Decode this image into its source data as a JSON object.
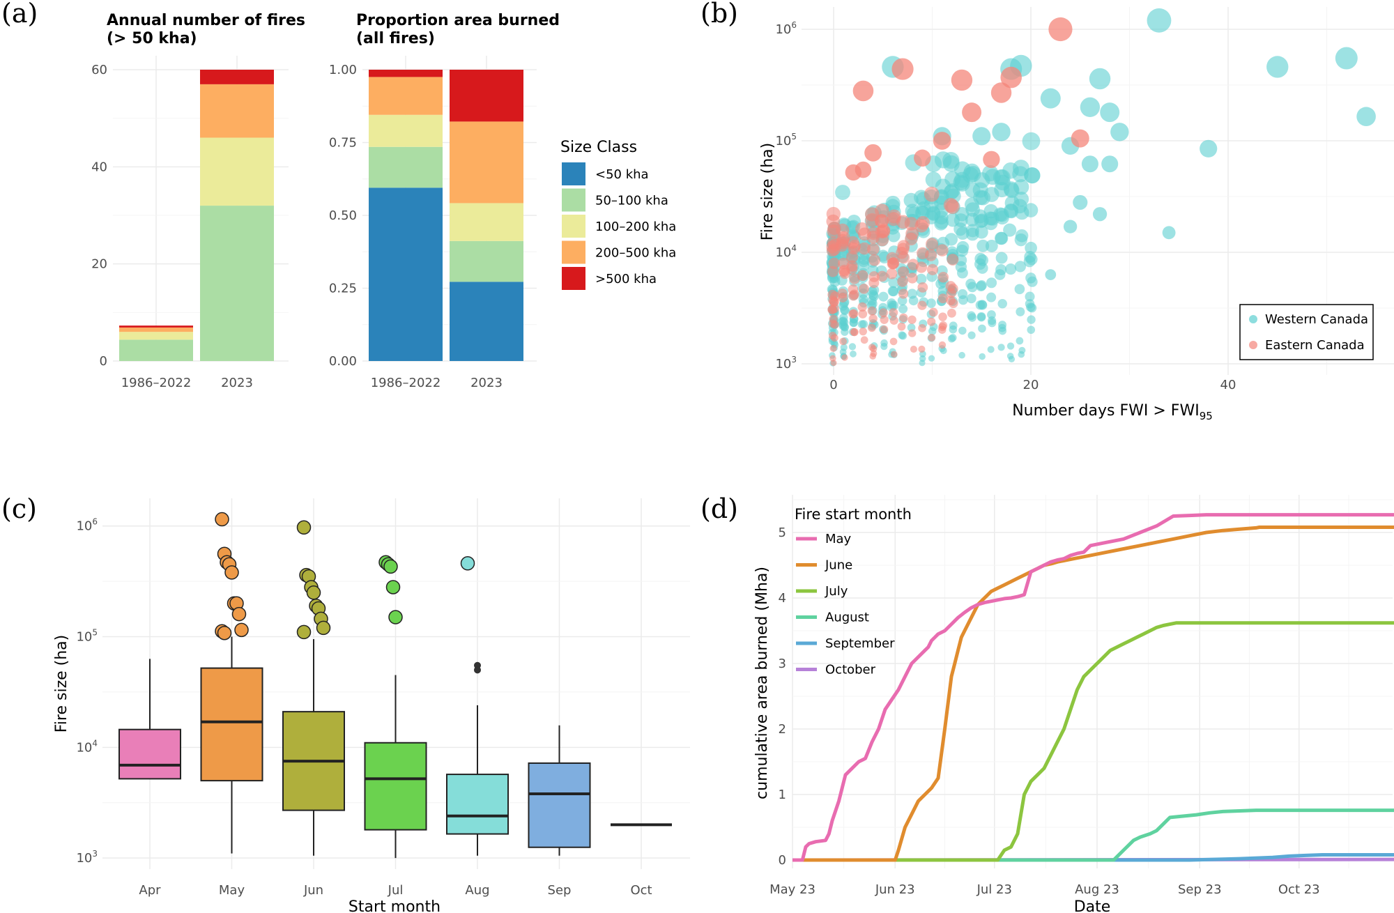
{
  "colors": {
    "lt50": "#2b83ba",
    "s50_100": "#abdda4",
    "s100_200": "#ebeb9a",
    "s200_500": "#fdae61",
    "gt500": "#d7191c",
    "western": "#5ccfd0",
    "eastern": "#f4857a",
    "may": "#e86cb0",
    "june": "#e08c2e",
    "july": "#8cc53f",
    "august": "#5fd29f",
    "september": "#5aa9d6",
    "october": "#b681d8",
    "apr_box": "#e97fb8",
    "may_box": "#ee9a48",
    "jun_box": "#afaf3c",
    "jul_box": "#6bd24f",
    "aug_box": "#85ddd9",
    "sep_box": "#7faedf"
  },
  "panel_labels": {
    "a": "(a)",
    "b": "(b)",
    "c": "(c)",
    "d": "(d)"
  },
  "chart_data": [
    {
      "id": "a1",
      "type": "bar",
      "stacked": true,
      "title": "Annual number of fires",
      "subtitle": "(> 50 kha)",
      "categories": [
        "1986–2022",
        "2023"
      ],
      "series": [
        {
          "name": "50–100 kha",
          "values": [
            4.4,
            32
          ]
        },
        {
          "name": "100–200 kha",
          "values": [
            1.6,
            14
          ]
        },
        {
          "name": "200–500 kha",
          "values": [
            0.9,
            11
          ]
        },
        {
          "name": ">500 kha",
          "values": [
            0.4,
            3
          ]
        }
      ],
      "ylim": [
        0,
        60
      ],
      "yticks": [
        0,
        20,
        40,
        60
      ],
      "ytick_labels": [
        "0",
        "20",
        "40",
        "60"
      ]
    },
    {
      "id": "a2",
      "type": "bar",
      "stacked": true,
      "title": "Proportion area burned",
      "subtitle": "(all fires)",
      "categories": [
        "1986–2022",
        "2023"
      ],
      "series": [
        {
          "name": "<50 kha",
          "values": [
            0.595,
            0.272
          ]
        },
        {
          "name": "50–100 kha",
          "values": [
            0.14,
            0.14
          ]
        },
        {
          "name": "100–200 kha",
          "values": [
            0.11,
            0.13
          ]
        },
        {
          "name": "200–500 kha",
          "values": [
            0.13,
            0.28
          ]
        },
        {
          "name": ">500 kha",
          "values": [
            0.025,
            0.178
          ]
        }
      ],
      "ylim": [
        0,
        1
      ],
      "yticks": [
        0,
        0.25,
        0.5,
        0.75,
        1
      ],
      "ytick_labels": [
        "0.00",
        "0.25",
        "0.50",
        "0.75",
        "1.00"
      ],
      "legend": {
        "title": "Size Class",
        "entries": [
          "<50 kha",
          "50–100 kha",
          "100–200 kha",
          "200–500 kha",
          ">500 kha"
        ],
        "placement": "right"
      }
    },
    {
      "id": "b",
      "type": "scatter",
      "xlabel": "Number days FWI > FWI",
      "xlabel_sub": "95",
      "ylabel": "Fire size (ha)",
      "xlim": [
        -2,
        55
      ],
      "xticks": [
        0,
        20,
        40
      ],
      "ylim_log10": [
        2.9,
        6.2
      ],
      "ytick_base": "10",
      "ytick_exponents": [
        "3",
        "4",
        "5",
        "6"
      ],
      "legend": {
        "entries": [
          "Western Canada",
          "Eastern Canada"
        ],
        "placement": "bottom-right"
      },
      "highlight_points": {
        "Western Canada": [
          [
            33,
            1200000
          ],
          [
            45,
            460000
          ],
          [
            52,
            550000
          ],
          [
            54,
            165000
          ],
          [
            27,
            360000
          ],
          [
            28,
            180000
          ],
          [
            26,
            200000
          ],
          [
            29,
            120000
          ],
          [
            22,
            240000
          ],
          [
            38,
            85000
          ],
          [
            24,
            90000
          ],
          [
            26,
            62000
          ],
          [
            28,
            62000
          ],
          [
            25,
            28000
          ],
          [
            27,
            22000
          ],
          [
            24,
            17000
          ],
          [
            34,
            15000
          ],
          [
            22,
            6300
          ],
          [
            19,
            470000
          ],
          [
            18,
            440000
          ],
          [
            17,
            120000
          ],
          [
            15,
            110000
          ],
          [
            11,
            110000
          ],
          [
            6,
            460000
          ]
        ],
        "Eastern Canada": [
          [
            23,
            1000000
          ],
          [
            3,
            280000
          ],
          [
            7,
            440000
          ],
          [
            13,
            350000
          ],
          [
            17,
            270000
          ],
          [
            18,
            370000
          ],
          [
            14,
            180000
          ],
          [
            25,
            105000
          ],
          [
            4,
            78000
          ],
          [
            2,
            52000
          ],
          [
            9,
            70000
          ],
          [
            11,
            100000
          ],
          [
            16,
            68000
          ],
          [
            3,
            55000
          ]
        ]
      },
      "series": [
        {
          "name": "Western Canada",
          "n_points_approx": 450,
          "note": "dense cloud, x 0-20, size 1e3-1e5 ha"
        },
        {
          "name": "Eastern Canada",
          "n_points_approx": 150,
          "note": "dense cloud, x 0-12, size 1e3-1e5 ha"
        }
      ]
    },
    {
      "id": "c",
      "type": "box",
      "xlabel": "Start month",
      "ylabel": "Fire size (ha)",
      "categories": [
        "Apr",
        "May",
        "Jun",
        "Jul",
        "Aug",
        "Sep",
        "Oct"
      ],
      "ylim_log10": [
        2.9,
        6.25
      ],
      "ytick_base": "10",
      "ytick_exponents": [
        "3",
        "4",
        "5",
        "6"
      ],
      "boxes": [
        {
          "month": "Apr",
          "whisker_low": 5200,
          "q1": 5200,
          "median": 6900,
          "q3": 14500,
          "whisker_high": 63000,
          "outliers": []
        },
        {
          "month": "May",
          "whisker_low": 1100,
          "q1": 5000,
          "median": 17000,
          "q3": 52000,
          "whisker_high": 100000,
          "outliers": [
            1150000,
            560000,
            470000,
            450000,
            380000,
            200000,
            200000,
            160000,
            115000,
            112000,
            108000
          ]
        },
        {
          "month": "Jun",
          "whisker_low": 1050,
          "q1": 2700,
          "median": 7500,
          "q3": 21000,
          "whisker_high": 95000,
          "outliers": [
            970000,
            360000,
            350000,
            280000,
            250000,
            190000,
            180000,
            145000,
            120000,
            110000
          ]
        },
        {
          "month": "Jul",
          "whisker_low": 1000,
          "q1": 1800,
          "median": 5200,
          "q3": 11000,
          "whisker_high": 45000,
          "outliers": [
            470000,
            450000,
            430000,
            280000,
            150000
          ]
        },
        {
          "month": "Aug",
          "whisker_low": 1050,
          "q1": 1650,
          "median": 2400,
          "q3": 5700,
          "whisker_high": 24000,
          "outliers": [
            460000,
            55000,
            50000
          ]
        },
        {
          "month": "Sep",
          "whisker_low": 1050,
          "q1": 1250,
          "median": 3800,
          "q3": 7200,
          "whisker_high": 15800,
          "outliers": []
        },
        {
          "month": "Oct",
          "whisker_low": 2000,
          "q1": 2000,
          "median": 2000,
          "q3": 2000,
          "whisker_high": 2000,
          "outliers": []
        }
      ]
    },
    {
      "id": "d",
      "type": "line",
      "xlabel": "Date",
      "ylabel": "cumulative area burned (Mha)",
      "x_unit": "days since May 1 2023",
      "xticks": [
        0,
        31,
        61,
        92,
        123,
        153
      ],
      "xtick_labels": [
        "May 23",
        "Jun 23",
        "Jul 23",
        "Aug 23",
        "Sep 23",
        "Oct 23"
      ],
      "xlim": [
        0,
        185
      ],
      "ylim": [
        0,
        5.35
      ],
      "yticks": [
        0,
        1,
        2,
        3,
        4,
        5
      ],
      "legend": {
        "title": "Fire start month",
        "entries": [
          "May",
          "June",
          "July",
          "August",
          "September",
          "October"
        ],
        "placement": "top-left"
      },
      "series": [
        {
          "name": "May",
          "x": [
            0,
            3,
            4,
            5,
            7,
            10,
            11,
            12,
            14,
            16,
            18,
            20,
            22,
            24,
            26,
            28,
            30,
            32,
            34,
            36,
            38,
            40,
            41,
            42,
            43,
            44,
            46,
            48,
            50,
            52,
            54,
            56,
            58,
            60,
            62,
            64,
            66,
            68,
            70,
            72,
            74,
            76,
            78,
            80,
            82,
            84,
            86,
            88,
            90,
            95,
            100,
            105,
            110,
            115,
            120,
            125,
            130,
            132,
            134,
            136,
            138,
            140,
            142,
            144,
            146,
            148,
            149,
            150,
            185
          ],
          "y": [
            0,
            0,
            0.2,
            0.25,
            0.28,
            0.3,
            0.4,
            0.6,
            0.9,
            1.3,
            1.4,
            1.5,
            1.55,
            1.8,
            2.0,
            2.3,
            2.45,
            2.6,
            2.8,
            3.0,
            3.1,
            3.2,
            3.25,
            3.35,
            3.4,
            3.45,
            3.5,
            3.6,
            3.7,
            3.78,
            3.85,
            3.9,
            3.93,
            3.95,
            3.97,
            3.99,
            4.0,
            4.02,
            4.05,
            4.4,
            4.45,
            4.5,
            4.55,
            4.58,
            4.6,
            4.65,
            4.68,
            4.7,
            4.8,
            4.85,
            4.9,
            5.0,
            5.1,
            5.25,
            5.26,
            5.27,
            5.27,
            5.27,
            5.27,
            5.27,
            5.27,
            5.27,
            5.27,
            5.27,
            5.27,
            5.27,
            5.27,
            5.27,
            5.27
          ]
        },
        {
          "name": "June",
          "x": [
            0,
            31,
            32,
            34,
            36,
            38,
            40,
            42,
            44,
            46,
            48,
            49,
            50,
            51,
            52,
            54,
            56,
            58,
            60,
            62,
            64,
            66,
            68,
            70,
            72,
            74,
            76,
            78,
            80,
            85,
            90,
            95,
            100,
            105,
            110,
            115,
            120,
            125,
            130,
            135,
            140,
            141,
            142,
            143,
            185
          ],
          "y": [
            0,
            0,
            0.15,
            0.5,
            0.7,
            0.9,
            1.0,
            1.1,
            1.25,
            2.0,
            2.8,
            3.0,
            3.2,
            3.4,
            3.5,
            3.7,
            3.9,
            4.0,
            4.1,
            4.15,
            4.2,
            4.25,
            4.3,
            4.35,
            4.4,
            4.45,
            4.5,
            4.52,
            4.55,
            4.6,
            4.65,
            4.7,
            4.75,
            4.8,
            4.85,
            4.9,
            4.95,
            5.0,
            5.03,
            5.05,
            5.07,
            5.08,
            5.08,
            5.08,
            5.08
          ]
        },
        {
          "name": "July",
          "x": [
            0,
            62,
            64,
            66,
            68,
            70,
            72,
            74,
            76,
            78,
            80,
            82,
            84,
            86,
            88,
            90,
            92,
            94,
            96,
            98,
            100,
            102,
            104,
            106,
            108,
            110,
            112,
            114,
            116,
            118,
            120,
            125,
            130,
            135,
            140,
            145,
            150,
            155,
            160,
            185
          ],
          "y": [
            0,
            0,
            0.15,
            0.2,
            0.4,
            1.0,
            1.2,
            1.3,
            1.4,
            1.6,
            1.8,
            2.0,
            2.3,
            2.6,
            2.8,
            2.9,
            3.0,
            3.1,
            3.2,
            3.25,
            3.3,
            3.35,
            3.4,
            3.45,
            3.5,
            3.55,
            3.58,
            3.6,
            3.62,
            3.62,
            3.62,
            3.62,
            3.62,
            3.62,
            3.62,
            3.62,
            3.62,
            3.62,
            3.62,
            3.62
          ]
        },
        {
          "name": "August",
          "x": [
            0,
            97,
            98,
            100,
            103,
            105,
            108,
            110,
            112,
            114,
            118,
            122,
            126,
            130,
            135,
            140,
            145,
            150,
            155,
            185
          ],
          "y": [
            0,
            0,
            0.05,
            0.15,
            0.3,
            0.35,
            0.4,
            0.45,
            0.55,
            0.65,
            0.67,
            0.69,
            0.72,
            0.74,
            0.75,
            0.76,
            0.76,
            0.76,
            0.76,
            0.76
          ]
        },
        {
          "name": "September",
          "x": [
            0,
            120,
            135,
            145,
            150,
            155,
            160,
            185
          ],
          "y": [
            0,
            0,
            0.02,
            0.04,
            0.06,
            0.07,
            0.08,
            0.08
          ]
        },
        {
          "name": "October",
          "x": [
            0,
            185
          ],
          "y": [
            0,
            0.01
          ]
        }
      ]
    }
  ]
}
